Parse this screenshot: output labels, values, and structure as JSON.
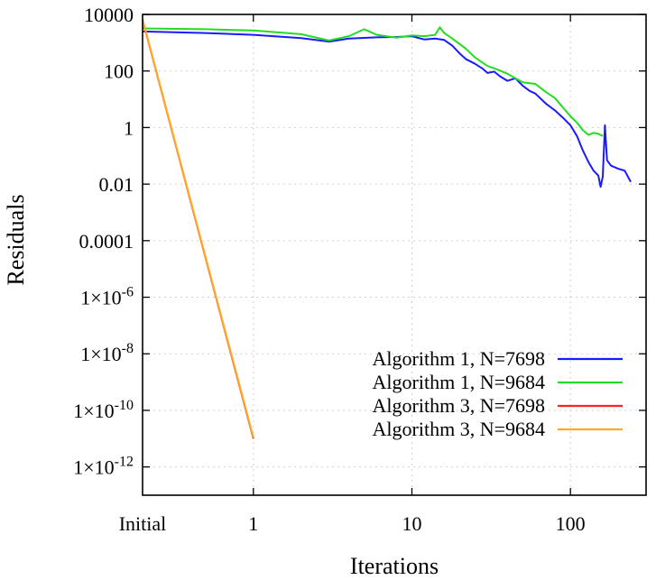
{
  "chart_data": {
    "type": "line",
    "xlabel": "Iterations",
    "ylabel": "Residuals",
    "x_scale": "log",
    "y_scale": "log",
    "xlim": [
      0.2,
      300
    ],
    "ylim": [
      1e-13,
      10000
    ],
    "grid": true,
    "legend_position": "bottom-right",
    "x_ticks": [
      {
        "value": 0.2,
        "label": "Initial"
      },
      {
        "value": 1,
        "label": "1"
      },
      {
        "value": 10,
        "label": "10"
      },
      {
        "value": 100,
        "label": "100"
      }
    ],
    "y_ticks": [
      {
        "value": 10000,
        "mant": "10000",
        "exp": ""
      },
      {
        "value": 100,
        "mant": "100",
        "exp": ""
      },
      {
        "value": 1,
        "mant": "1",
        "exp": ""
      },
      {
        "value": 0.01,
        "mant": "0.01",
        "exp": ""
      },
      {
        "value": 0.0001,
        "mant": "0.0001",
        "exp": ""
      },
      {
        "value": 1e-06,
        "mant": "1×10",
        "exp": "-6"
      },
      {
        "value": 1e-08,
        "mant": "1×10",
        "exp": "-8"
      },
      {
        "value": 1e-10,
        "mant": "1×10",
        "exp": "-10"
      },
      {
        "value": 1e-12,
        "mant": "1×10",
        "exp": "-12"
      }
    ],
    "series": [
      {
        "name": "Algorithm 1, N=7698",
        "color": "#1a1aff",
        "points": [
          [
            0.2,
            2500
          ],
          [
            0.5,
            2200
          ],
          [
            1,
            1900
          ],
          [
            2,
            1450
          ],
          [
            3,
            1100
          ],
          [
            4,
            1400
          ],
          [
            6,
            1550
          ],
          [
            8,
            1600
          ],
          [
            10,
            1700
          ],
          [
            12,
            1300
          ],
          [
            14,
            1400
          ],
          [
            16,
            1250
          ],
          [
            18,
            780
          ],
          [
            20,
            420
          ],
          [
            22,
            260
          ],
          [
            25,
            180
          ],
          [
            28,
            120
          ],
          [
            30,
            85
          ],
          [
            33,
            95
          ],
          [
            36,
            65
          ],
          [
            40,
            45
          ],
          [
            45,
            55
          ],
          [
            50,
            30
          ],
          [
            55,
            20
          ],
          [
            60,
            16
          ],
          [
            70,
            7
          ],
          [
            80,
            4
          ],
          [
            90,
            2.2
          ],
          [
            100,
            1.2
          ],
          [
            110,
            0.5
          ],
          [
            120,
            0.15
          ],
          [
            130,
            0.06
          ],
          [
            140,
            0.03
          ],
          [
            150,
            0.02
          ],
          [
            155,
            0.008
          ],
          [
            160,
            0.018
          ],
          [
            165,
            1.2
          ],
          [
            170,
            0.07
          ],
          [
            180,
            0.045
          ],
          [
            200,
            0.035
          ],
          [
            220,
            0.03
          ],
          [
            240,
            0.012
          ]
        ]
      },
      {
        "name": "Algorithm 1, N=9684",
        "color": "#22dd22",
        "points": [
          [
            0.2,
            3200
          ],
          [
            0.5,
            3000
          ],
          [
            1,
            2700
          ],
          [
            2,
            2000
          ],
          [
            3,
            1200
          ],
          [
            4,
            1700
          ],
          [
            5,
            3000
          ],
          [
            6,
            1900
          ],
          [
            8,
            1500
          ],
          [
            10,
            1800
          ],
          [
            12,
            1700
          ],
          [
            14,
            1900
          ],
          [
            15,
            3500
          ],
          [
            16,
            2200
          ],
          [
            18,
            1400
          ],
          [
            20,
            900
          ],
          [
            22,
            600
          ],
          [
            25,
            300
          ],
          [
            30,
            150
          ],
          [
            35,
            110
          ],
          [
            40,
            80
          ],
          [
            45,
            55
          ],
          [
            50,
            40
          ],
          [
            60,
            35
          ],
          [
            70,
            18
          ],
          [
            80,
            11
          ],
          [
            90,
            5
          ],
          [
            100,
            2.5
          ],
          [
            110,
            1.5
          ],
          [
            120,
            0.8
          ],
          [
            130,
            0.55
          ],
          [
            140,
            0.65
          ],
          [
            150,
            0.6
          ],
          [
            160,
            0.5
          ]
        ]
      },
      {
        "name": "Algorithm 3, N=7698",
        "color": "#ff2020",
        "points": [
          [
            0.2,
            6500
          ],
          [
            1,
            1e-11
          ]
        ]
      },
      {
        "name": "Algorithm 3, N=9684",
        "color": "#ffaa22",
        "points": [
          [
            0.2,
            6800
          ],
          [
            1,
            1.1e-11
          ]
        ]
      }
    ]
  }
}
